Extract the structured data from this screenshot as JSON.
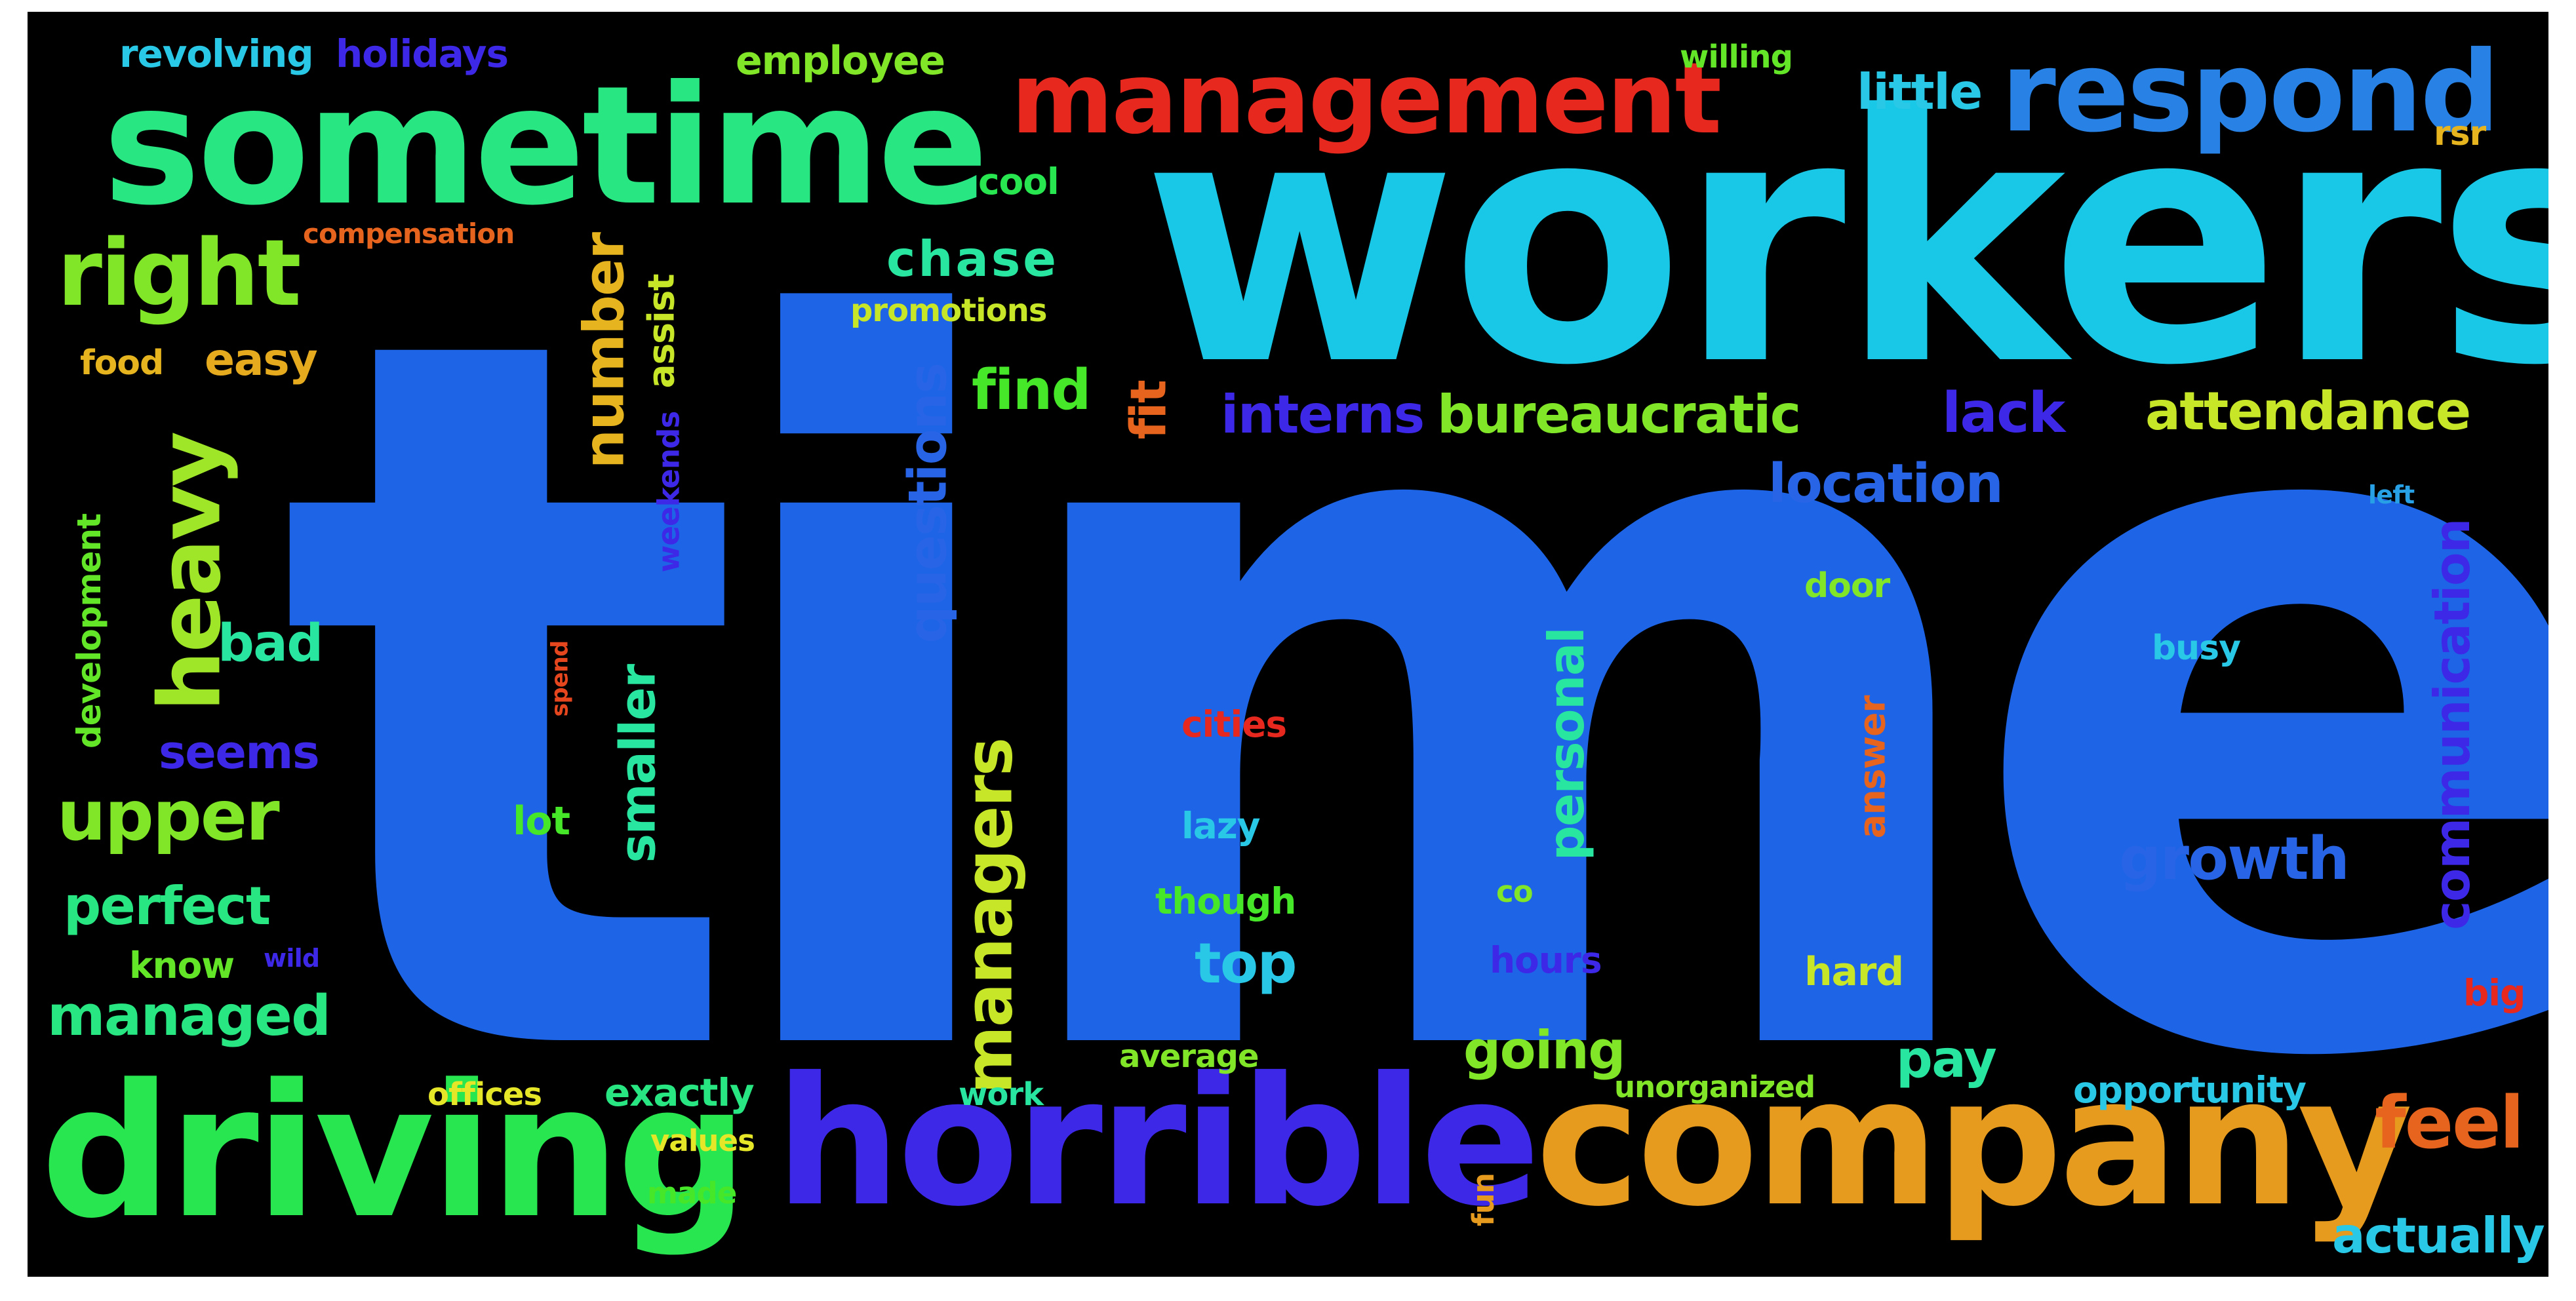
{
  "words": [
    {
      "text": "time",
      "color": "#1e64e6"
    },
    {
      "text": "workers",
      "color": "#19c8e6"
    },
    {
      "text": "sometime",
      "color": "#28e682"
    },
    {
      "text": "management",
      "color": "#e6281e"
    },
    {
      "text": "respond",
      "color": "#2882e6"
    },
    {
      "text": "driving",
      "color": "#28e650"
    },
    {
      "text": "horrible",
      "color": "#3c28e6"
    },
    {
      "text": "company",
      "color": "#e69b1e"
    },
    {
      "text": "right",
      "color": "#82e628"
    },
    {
      "text": "heavy",
      "color": "#a0e628"
    },
    {
      "text": "upper",
      "color": "#82e628"
    },
    {
      "text": "revolving",
      "color": "#28c8e6"
    },
    {
      "text": "holidays",
      "color": "#3c28e6"
    },
    {
      "text": "employee",
      "color": "#82e628"
    },
    {
      "text": "willing",
      "color": "#64e628"
    },
    {
      "text": "little",
      "color": "#28c8e6"
    },
    {
      "text": "rsr",
      "color": "#e6b41e"
    },
    {
      "text": "cool",
      "color": "#28e650"
    },
    {
      "text": "compensation",
      "color": "#e6641e"
    },
    {
      "text": "chase",
      "color": "#28e6a0"
    },
    {
      "text": "promotions",
      "color": "#c8e628"
    },
    {
      "text": "food",
      "color": "#e6b41e"
    },
    {
      "text": "easy",
      "color": "#e6aa1e"
    },
    {
      "text": "number",
      "color": "#e6b41e"
    },
    {
      "text": "assist",
      "color": "#c8e628"
    },
    {
      "text": "find",
      "color": "#46e628"
    },
    {
      "text": "fit",
      "color": "#e6641e"
    },
    {
      "text": "interns",
      "color": "#3c28e6"
    },
    {
      "text": "bureaucratic",
      "color": "#82e628"
    },
    {
      "text": "lack",
      "color": "#3c28e6"
    },
    {
      "text": "attendance",
      "color": "#c8e628"
    },
    {
      "text": "questions",
      "color": "#2864e6"
    },
    {
      "text": "weekends",
      "color": "#3c28e6"
    },
    {
      "text": "development",
      "color": "#64e628"
    },
    {
      "text": "location",
      "color": "#2864e6"
    },
    {
      "text": "left",
      "color": "#28a0e6"
    },
    {
      "text": "bad",
      "color": "#28e6a0"
    },
    {
      "text": "door",
      "color": "#82e628"
    },
    {
      "text": "communication",
      "color": "#3c28e6"
    },
    {
      "text": "spend",
      "color": "#e6461e"
    },
    {
      "text": "personal",
      "color": "#28e6a0"
    },
    {
      "text": "busy",
      "color": "#28c8e6"
    },
    {
      "text": "seems",
      "color": "#3c28e6"
    },
    {
      "text": "smaller",
      "color": "#28e6a0"
    },
    {
      "text": "cities",
      "color": "#e6281e"
    },
    {
      "text": "answer",
      "color": "#e6641e"
    },
    {
      "text": "managers",
      "color": "#c8e628"
    },
    {
      "text": "lot",
      "color": "#46e628"
    },
    {
      "text": "lazy",
      "color": "#28c8e6"
    },
    {
      "text": "growth",
      "color": "#2864e6"
    },
    {
      "text": "perfect",
      "color": "#28e682"
    },
    {
      "text": "though",
      "color": "#46e628"
    },
    {
      "text": "co",
      "color": "#82e628"
    },
    {
      "text": "know",
      "color": "#64e628"
    },
    {
      "text": "wild",
      "color": "#3c28e6"
    },
    {
      "text": "top",
      "color": "#28c8e6"
    },
    {
      "text": "hours",
      "color": "#3c28e6"
    },
    {
      "text": "hard",
      "color": "#c8e628"
    },
    {
      "text": "big",
      "color": "#e6281e"
    },
    {
      "text": "managed",
      "color": "#28e682"
    },
    {
      "text": "going",
      "color": "#82e628"
    },
    {
      "text": "average",
      "color": "#82e628"
    },
    {
      "text": "pay",
      "color": "#28e6a0"
    },
    {
      "text": "offices",
      "color": "#e6e628"
    },
    {
      "text": "exactly",
      "color": "#28e682"
    },
    {
      "text": "work",
      "color": "#28e6a0"
    },
    {
      "text": "unorganized",
      "color": "#82e628"
    },
    {
      "text": "opportunity",
      "color": "#28c8e6"
    },
    {
      "text": "feel",
      "color": "#e6641e"
    },
    {
      "text": "values",
      "color": "#e6e628"
    },
    {
      "text": "made",
      "color": "#46e628"
    },
    {
      "text": "fun",
      "color": "#e69b1e"
    },
    {
      "text": "actually",
      "color": "#28c8e6"
    }
  ]
}
